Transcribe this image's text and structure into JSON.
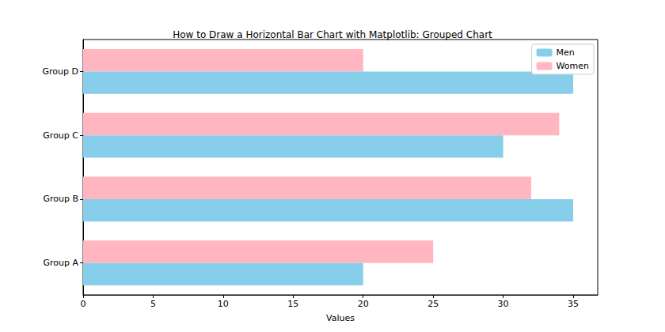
{
  "chart_data": {
    "type": "bar",
    "orientation": "horizontal",
    "title": "How to Draw a Horizontal Bar Chart with Matplotlib: Grouped Chart",
    "xlabel": "Values",
    "categories": [
      "Group A",
      "Group B",
      "Group C",
      "Group D"
    ],
    "series": [
      {
        "name": "Men",
        "color": "#87ceeb",
        "values": [
          20,
          35,
          30,
          35
        ]
      },
      {
        "name": "Women",
        "color": "#ffb6c1",
        "values": [
          25,
          32,
          34,
          20
        ]
      }
    ],
    "xlim": [
      0,
      36.75
    ],
    "xticks": [
      0,
      5,
      10,
      15,
      20,
      25,
      30,
      35
    ],
    "legend": "upper right",
    "grid": false
  }
}
